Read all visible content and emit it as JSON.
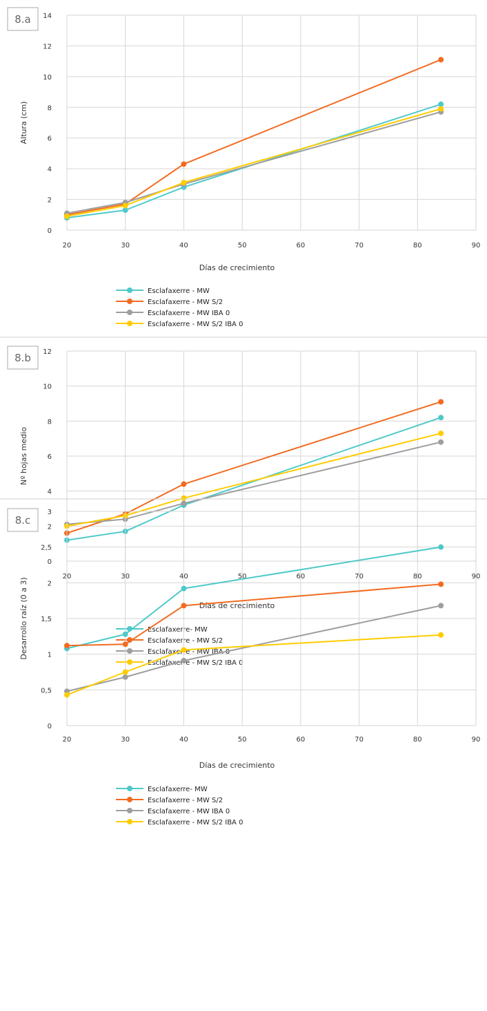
{
  "chart_data": [
    {
      "type": "line",
      "panel_label": "8.a",
      "xlabel": "Días de crecimiento",
      "ylabel": "Altura (cm)",
      "xlim": [
        20,
        90
      ],
      "ylim": [
        0,
        14
      ],
      "xticks": [
        "20",
        "30",
        "40",
        "50",
        "60",
        "70",
        "80",
        "90"
      ],
      "yticks": [
        "0",
        "2",
        "4",
        "6",
        "8",
        "10",
        "12",
        "14"
      ],
      "grid": true,
      "legend_position": "bottom",
      "x": [
        20,
        30,
        40,
        84
      ],
      "series": [
        {
          "name": "Esclafaxerre - MW",
          "color": "#4ec9c9",
          "values": [
            0.8,
            1.3,
            2.8,
            8.2
          ]
        },
        {
          "name": "Esclafaxerre - MW S/2",
          "color": "#f26b21",
          "values": [
            1.0,
            1.7,
            4.3,
            11.1
          ]
        },
        {
          "name": "Esclafaxerre - MW IBA 0",
          "color": "#9e9e9e",
          "values": [
            1.1,
            1.8,
            3.0,
            7.7
          ]
        },
        {
          "name": "Esclafaxerre - MW S/2 IBA 0",
          "color": "#ffcc00",
          "values": [
            0.9,
            1.6,
            3.1,
            7.9
          ]
        }
      ]
    },
    {
      "type": "line",
      "panel_label": "8.b",
      "xlabel": "Días de crecimiento",
      "ylabel": "Nº hojas medio",
      "xlim": [
        20,
        90
      ],
      "ylim": [
        0,
        12
      ],
      "xticks": [
        "20",
        "30",
        "40",
        "50",
        "60",
        "70",
        "80",
        "90"
      ],
      "yticks": [
        "0",
        "2",
        "4",
        "6",
        "8",
        "10",
        "12"
      ],
      "grid": true,
      "legend_position": "bottom",
      "x": [
        20,
        30,
        40,
        84
      ],
      "series": [
        {
          "name": "Esclafaxerre- MW",
          "color": "#4ec9c9",
          "values": [
            1.2,
            1.7,
            3.2,
            8.2
          ]
        },
        {
          "name": "Esclafaxerre - MW S/2",
          "color": "#f26b21",
          "values": [
            1.6,
            2.7,
            4.4,
            9.1
          ]
        },
        {
          "name": "Esclafaxerre - MW IBA 0",
          "color": "#9e9e9e",
          "values": [
            2.1,
            2.4,
            3.3,
            6.8
          ]
        },
        {
          "name": "Esclafaxerre - MW S/2 IBA 0",
          "color": "#ffcc00",
          "values": [
            2.0,
            2.6,
            3.6,
            7.3
          ]
        }
      ]
    },
    {
      "type": "line",
      "panel_label": "8.c",
      "xlabel": "Días de crecimiento",
      "ylabel": "Desarrollo raíz (0 a 3)",
      "xlim": [
        20,
        90
      ],
      "ylim": [
        0,
        3
      ],
      "xticks": [
        "20",
        "30",
        "40",
        "50",
        "60",
        "70",
        "80",
        "90"
      ],
      "yticks": [
        "0",
        "0,5",
        "1",
        "1,5",
        "2",
        "2,5",
        "3"
      ],
      "grid": true,
      "legend_position": "bottom",
      "x": [
        20,
        30,
        40,
        84
      ],
      "series": [
        {
          "name": "Esclafaxerre- MW",
          "color": "#4ec9c9",
          "values": [
            1.08,
            1.28,
            1.92,
            2.5
          ]
        },
        {
          "name": "Esclafaxerre - MW S/2",
          "color": "#f26b21",
          "values": [
            1.12,
            1.14,
            1.68,
            1.98
          ]
        },
        {
          "name": "Esclafaxerre - MW IBA 0",
          "color": "#9e9e9e",
          "values": [
            0.48,
            0.68,
            0.91,
            1.68
          ]
        },
        {
          "name": "Esclafaxerre - MW S/2 IBA 0",
          "color": "#ffcc00",
          "values": [
            0.43,
            0.75,
            1.06,
            1.27
          ]
        }
      ]
    }
  ]
}
